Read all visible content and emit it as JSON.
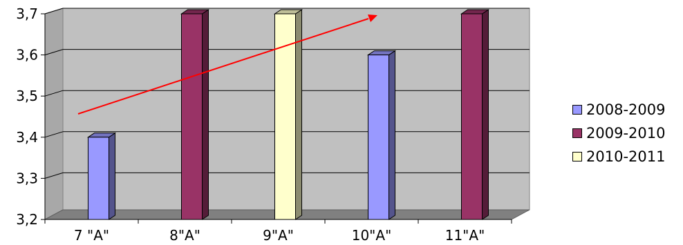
{
  "chart_data": {
    "type": "bar",
    "categories": [
      "7 \"A\"",
      "8\"A\"",
      "9\"A\"",
      "10\"A\"",
      "11\"A\""
    ],
    "series": [
      {
        "name": "2008-2009",
        "color": "#9999ff",
        "values": [
          3.4,
          null,
          null,
          3.6,
          null
        ]
      },
      {
        "name": "2009-2010",
        "color": "#993366",
        "values": [
          null,
          3.7,
          null,
          null,
          3.7
        ]
      },
      {
        "name": "2010-2011",
        "color": "#ffffcc",
        "values": [
          null,
          null,
          3.7,
          null,
          null
        ]
      }
    ],
    "y_ticks": [
      "3,2",
      "3,3",
      "3,4",
      "3,5",
      "3,6",
      "3,7"
    ],
    "ylim": [
      3.2,
      3.7
    ],
    "grid": true,
    "legend_position": "right",
    "annotation": {
      "type": "trend-arrow",
      "color": "#ff0000"
    },
    "title": "",
    "xlabel": "",
    "ylabel": ""
  }
}
